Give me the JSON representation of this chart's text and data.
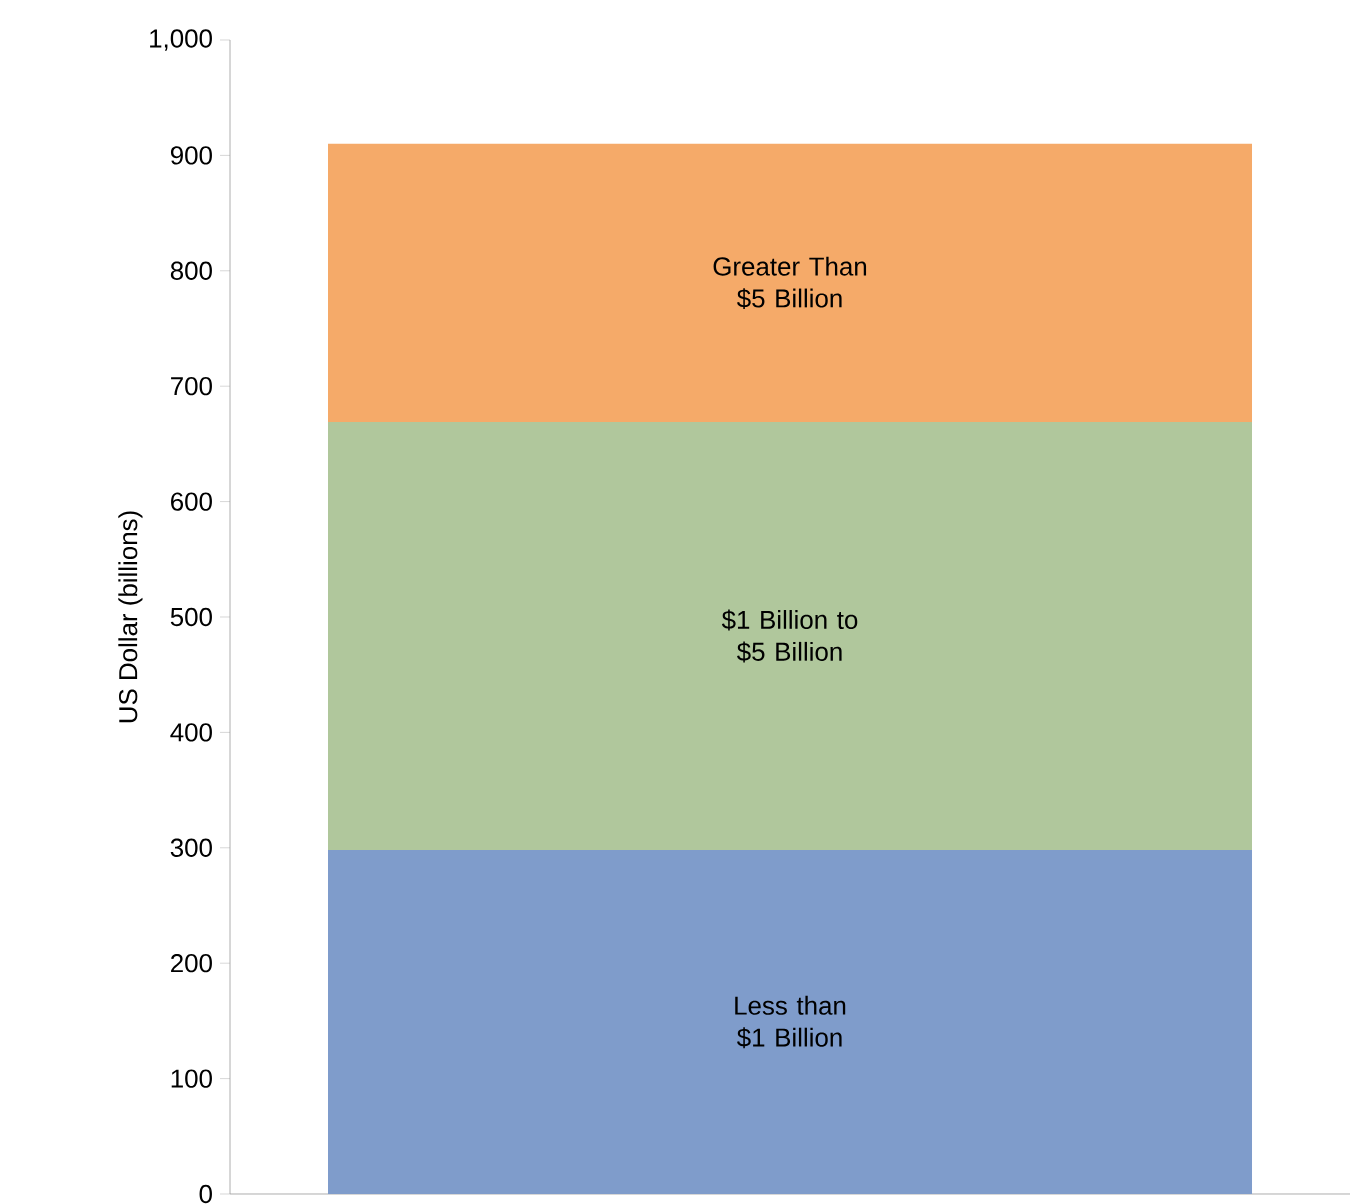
{
  "chart_data": {
    "type": "bar",
    "stacked": true,
    "ylabel": "US Dollar (billions)",
    "categories": [
      null
    ],
    "series": [
      {
        "name": "Less than $1 Billion",
        "color": "#7f9ccb",
        "values": [
          298
        ]
      },
      {
        "name": "$1 Billion to $5 Billion",
        "color": "#b0c79c",
        "values": [
          371
        ]
      },
      {
        "name": "Greater Than $5 Billion",
        "color": "#f5aa69",
        "values": [
          241
        ]
      }
    ],
    "ylim": [
      0,
      1000
    ],
    "yticks": [
      0,
      100,
      200,
      300,
      400,
      500,
      600,
      700,
      800,
      900,
      {
        "value": 1000,
        "label": "1,000"
      }
    ],
    "legend": false,
    "grid": false
  }
}
